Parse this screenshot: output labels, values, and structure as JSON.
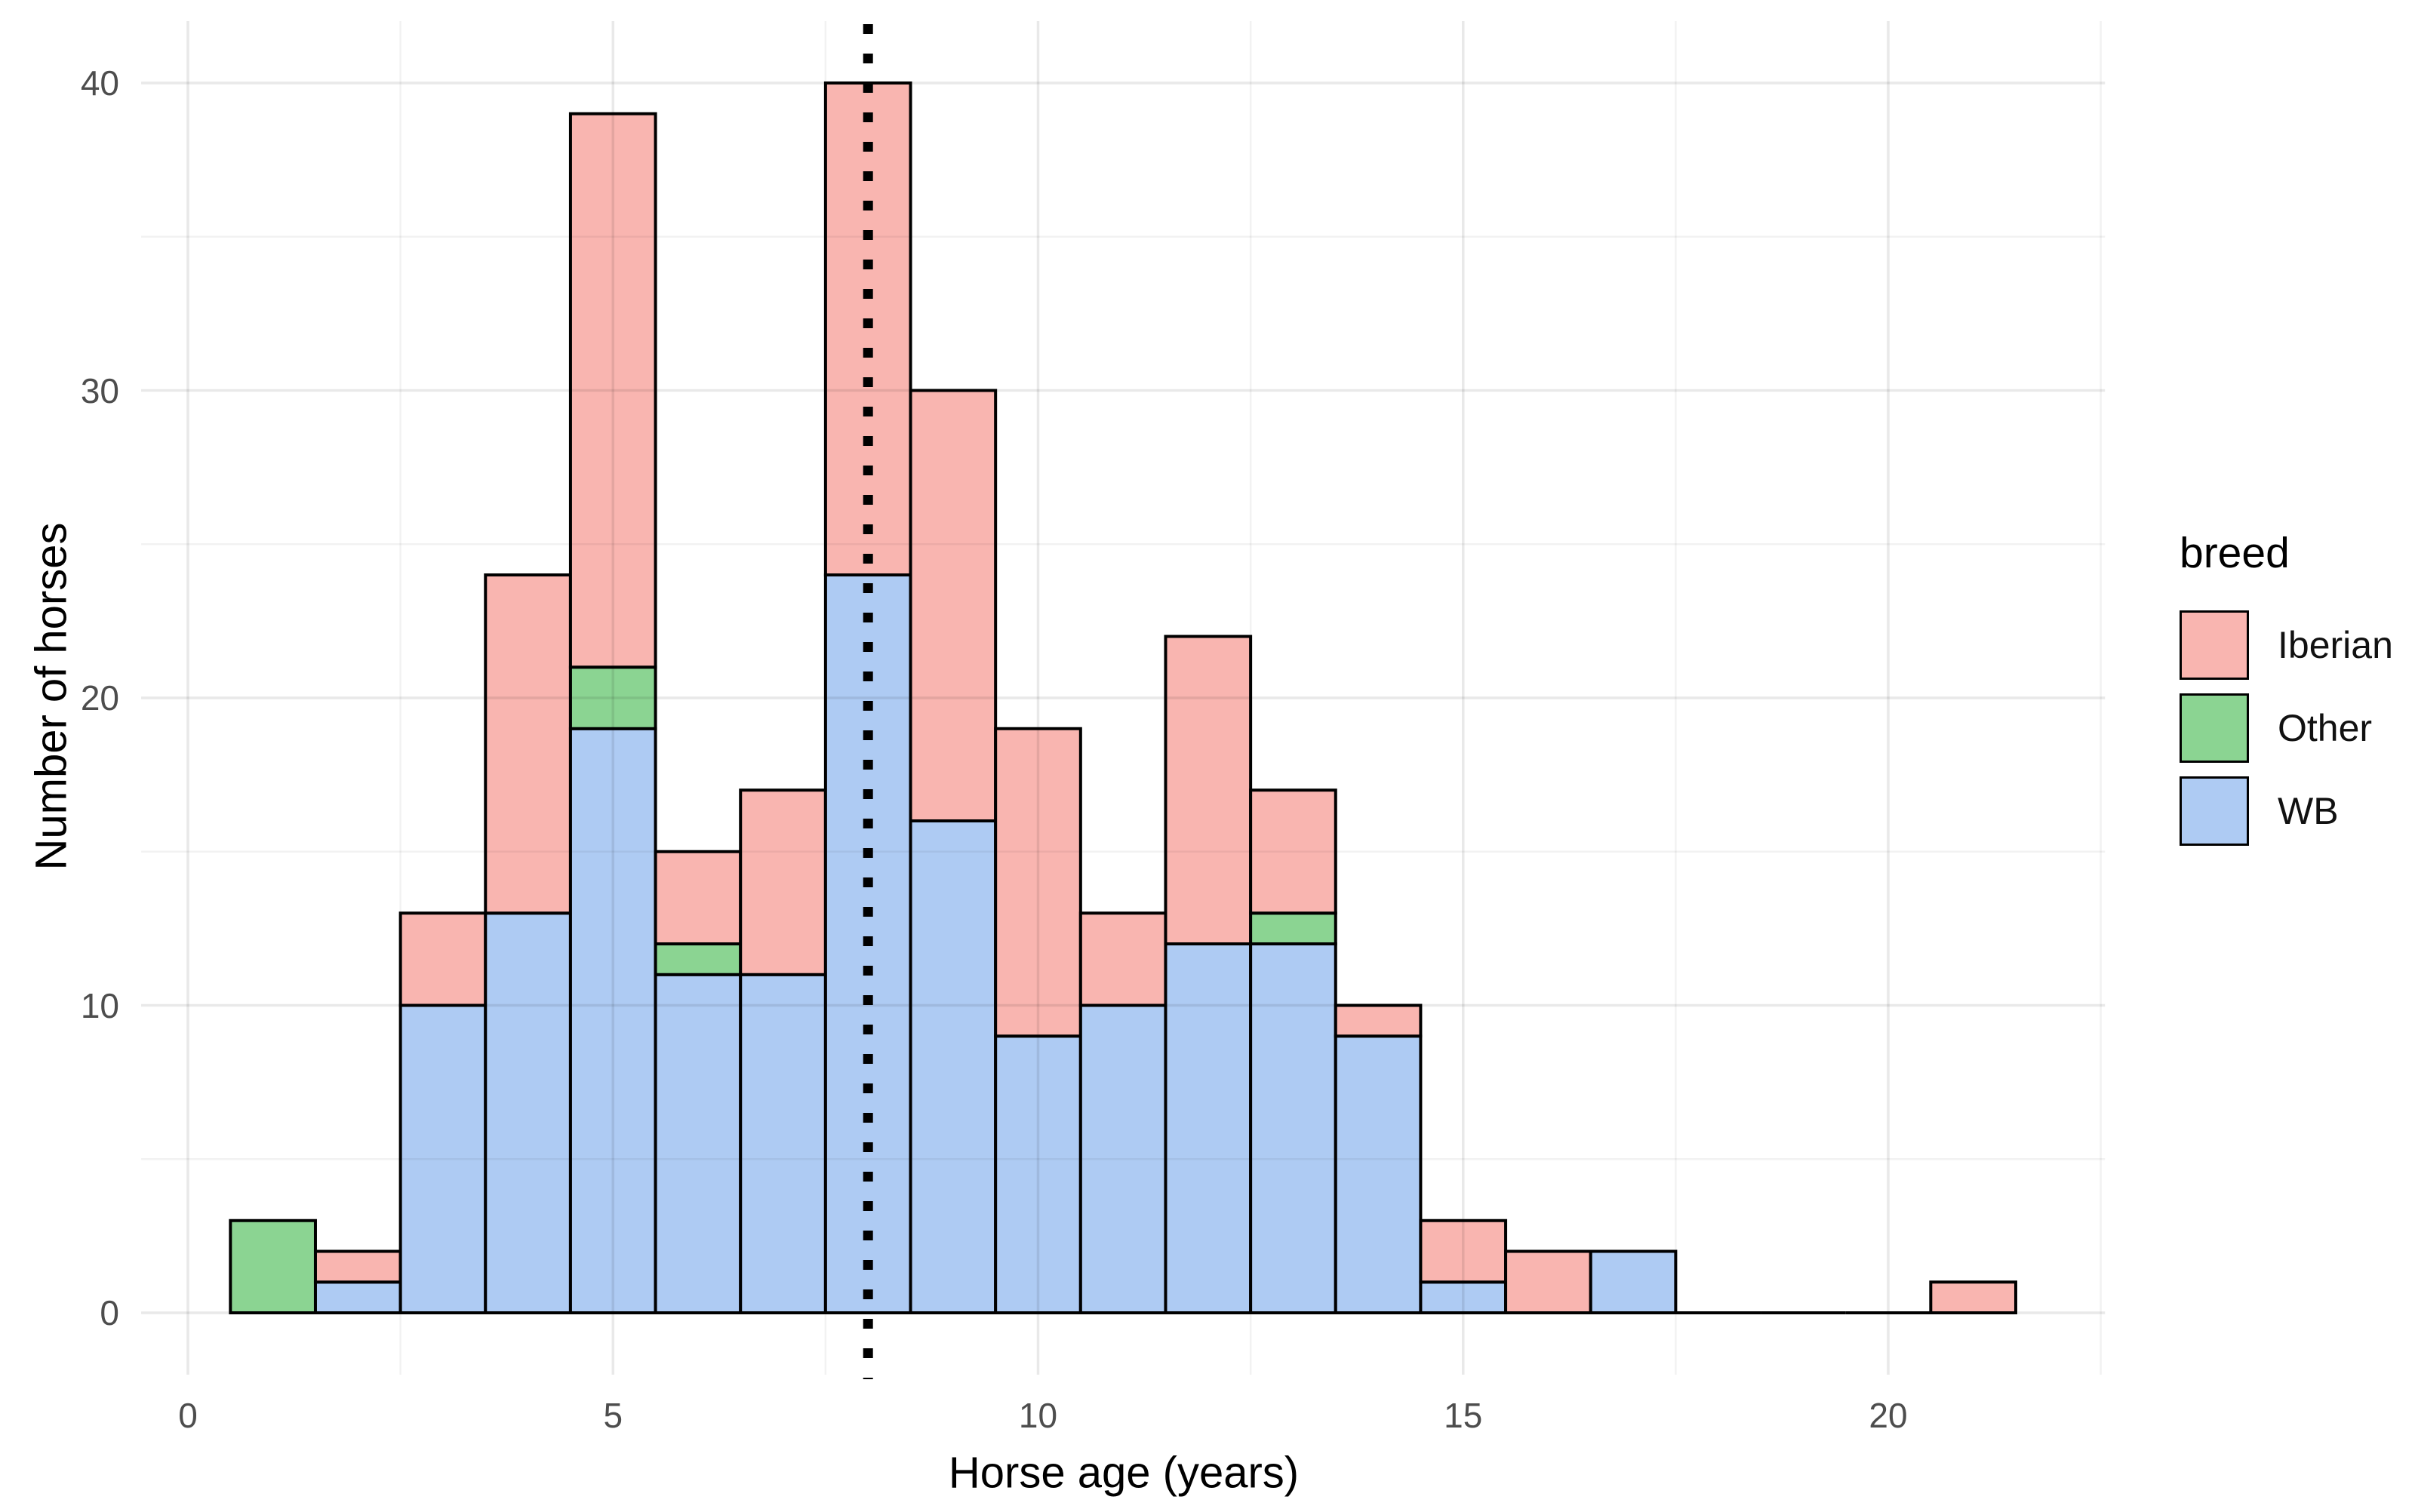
{
  "chart_data": {
    "type": "bar",
    "subtype": "stacked-histogram",
    "xlabel": "Horse age (years)",
    "ylabel": "Number of horses",
    "bin_width": 1,
    "bin_centers": [
      1,
      2,
      3,
      4,
      5,
      6,
      7,
      8,
      9,
      10,
      11,
      12,
      13,
      14,
      15,
      16,
      17,
      18,
      19,
      20,
      21
    ],
    "series": [
      {
        "name": "WB",
        "color": "#AECBF3",
        "values": [
          0,
          1,
          10,
          13,
          19,
          11,
          11,
          24,
          16,
          9,
          10,
          12,
          12,
          9,
          1,
          0,
          2,
          0,
          0,
          0,
          0
        ]
      },
      {
        "name": "Other",
        "color": "#8BD492",
        "values": [
          3,
          0,
          0,
          0,
          2,
          1,
          0,
          0,
          0,
          0,
          0,
          0,
          1,
          0,
          0,
          0,
          0,
          0,
          0,
          0,
          0
        ]
      },
      {
        "name": "Iberian",
        "color": "#F9B5B0",
        "values": [
          0,
          1,
          3,
          11,
          18,
          3,
          6,
          16,
          14,
          10,
          3,
          10,
          4,
          1,
          2,
          2,
          0,
          0,
          0,
          0,
          1
        ]
      }
    ],
    "stack_order_bottom_to_top": [
      "WB",
      "Other",
      "Iberian"
    ],
    "bar_outline_color": "#000000",
    "x_ticks": [
      0,
      5,
      10,
      15,
      20
    ],
    "y_ticks": [
      0,
      10,
      20,
      30,
      40
    ],
    "x_minor_gridlines": [
      2.5,
      7.5,
      12.5,
      17.5,
      22.5
    ],
    "y_minor_gridlines": [
      5,
      15,
      25,
      35
    ],
    "xlim": [
      -0.55,
      22.55
    ],
    "ylim": [
      -2,
      42
    ],
    "grid": true,
    "vline": {
      "x": 8,
      "style": "dotted",
      "color": "#000000"
    },
    "legend": {
      "title": "breed",
      "position": "right",
      "items": [
        {
          "label": "Iberian",
          "color": "#F9B5B0"
        },
        {
          "label": "Other",
          "color": "#8BD492"
        },
        {
          "label": "WB",
          "color": "#AECBF3"
        }
      ]
    }
  }
}
